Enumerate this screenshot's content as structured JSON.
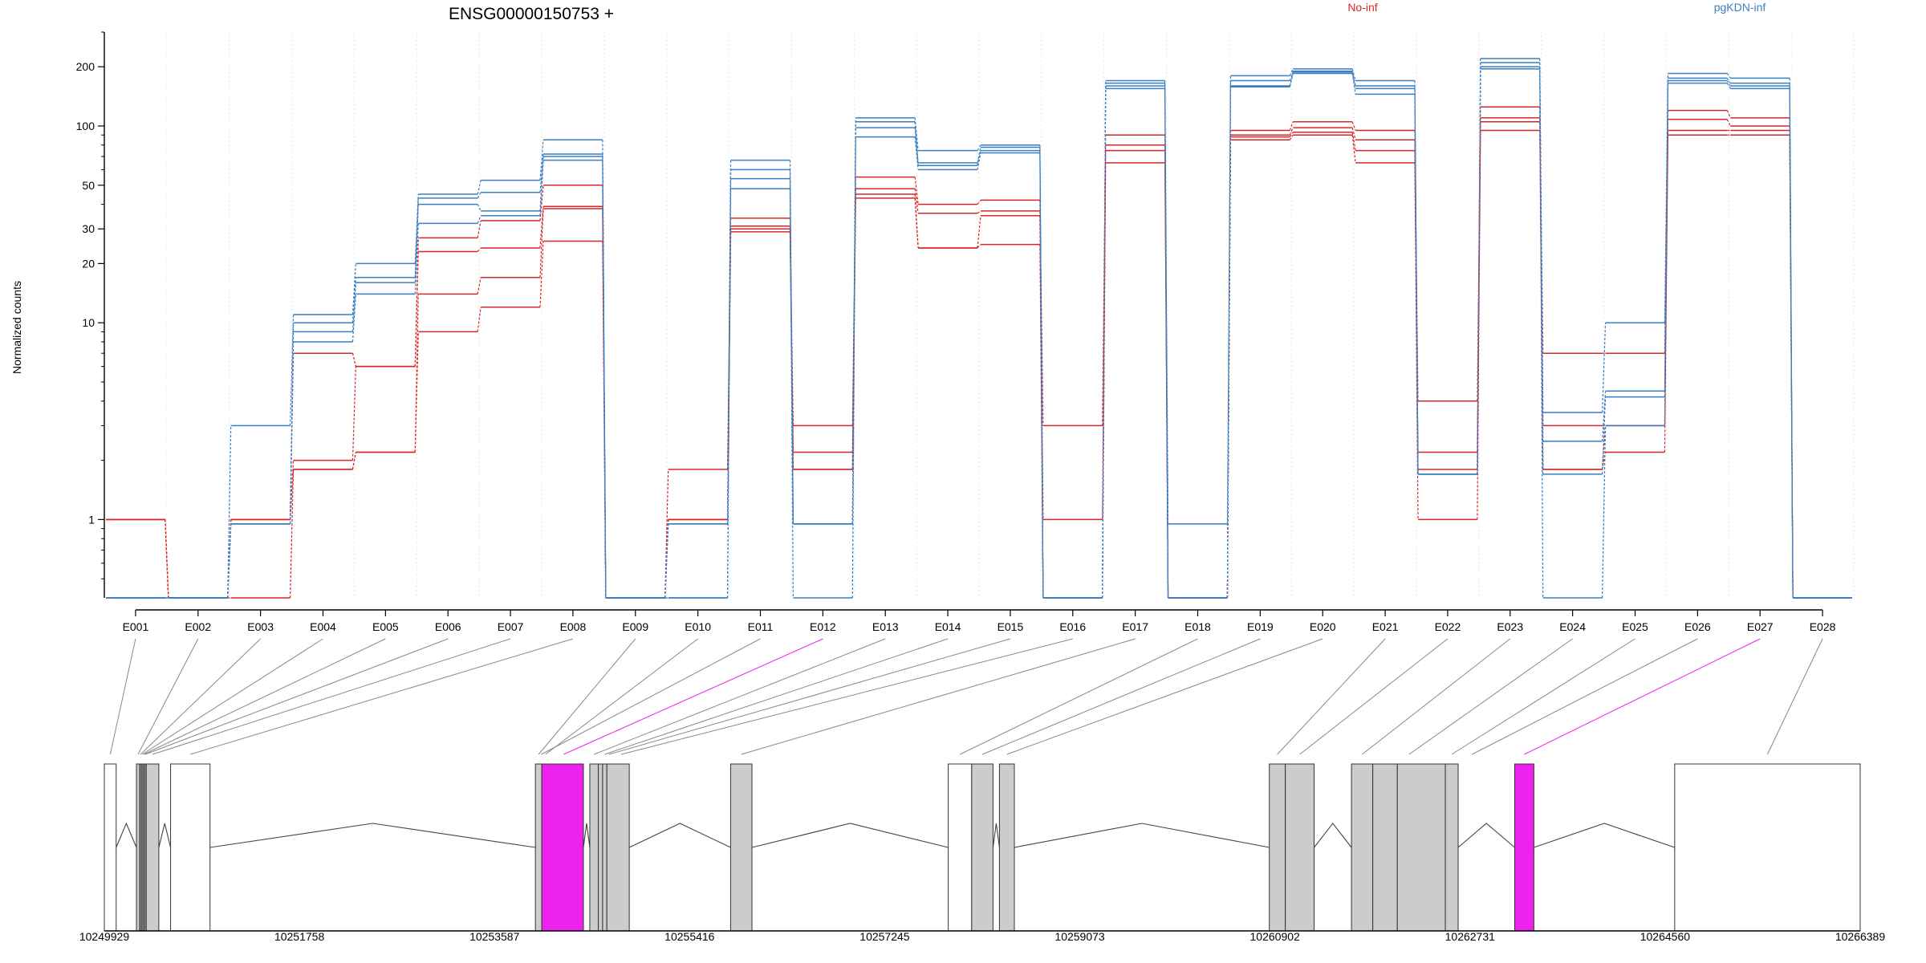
{
  "title": "ENSG00000150753 +",
  "colors": {
    "no_inf": "#d62728",
    "pgkdn_inf": "#3a7fc1",
    "highlight": "#ee22ee",
    "exon_fill": "#cccccc",
    "connector": "#888888"
  },
  "chart_data": {
    "type": "line",
    "title": "ENSG00000150753 +",
    "xlabel": "",
    "ylabel": "Normalized counts",
    "yscale": "log",
    "ylim": [
      0.4,
      300
    ],
    "yticks": [
      1,
      10,
      20,
      30,
      50,
      100,
      200
    ],
    "ytick_labels": [
      "1",
      "10",
      "20",
      "30",
      "50",
      "100",
      "200"
    ],
    "grid": "vertical dotted",
    "legend": "top",
    "categories": [
      "E001",
      "E002",
      "E003",
      "E004",
      "E005",
      "E006",
      "E007",
      "E008",
      "E009",
      "E010",
      "E011",
      "E012",
      "E013",
      "E014",
      "E015",
      "E016",
      "E017",
      "E018",
      "E019",
      "E020",
      "E021",
      "E022",
      "E023",
      "E024",
      "E025",
      "E026",
      "E027",
      "E028"
    ],
    "series": [
      {
        "name": "No-inf",
        "group": "no_inf",
        "values": [
          1,
          0.4,
          1,
          7,
          6,
          27,
          33,
          50,
          0.4,
          1.8,
          34,
          3,
          55,
          40,
          42,
          3,
          90,
          0.4,
          95,
          105,
          95,
          4,
          125,
          7,
          7,
          120,
          110,
          0.4
        ]
      },
      {
        "group": "no_inf",
        "values": [
          1,
          0.4,
          1,
          2,
          6,
          23,
          24,
          39,
          0.4,
          1,
          31,
          2.2,
          48,
          36,
          37,
          1,
          80,
          0.4,
          90,
          98,
          85,
          2.2,
          110,
          3,
          3,
          108,
          100,
          0.4
        ]
      },
      {
        "group": "no_inf",
        "values": [
          1,
          0.4,
          1,
          1.8,
          2.2,
          14,
          17,
          38,
          0.4,
          1,
          30,
          1.8,
          45,
          24,
          25,
          0.4,
          75,
          0.4,
          88,
          93,
          75,
          1.8,
          105,
          1.8,
          2.2,
          95,
          95,
          0.4
        ]
      },
      {
        "group": "no_inf",
        "values": [
          1,
          0.4,
          0.4,
          1.8,
          2.2,
          9,
          12,
          26,
          0.4,
          1,
          29,
          1.8,
          43,
          24,
          35,
          0.4,
          65,
          0.4,
          85,
          90,
          65,
          1,
          95,
          1.8,
          3,
          90,
          90,
          0.4
        ]
      },
      {
        "name": "pgKDN-inf",
        "group": "pgkdn_inf",
        "values": [
          0.4,
          0.4,
          3,
          11,
          20,
          45,
          53,
          85,
          0.4,
          0.95,
          67,
          0.95,
          110,
          75,
          80,
          0.4,
          170,
          0.95,
          180,
          195,
          170,
          1.7,
          220,
          3.5,
          10,
          185,
          175,
          0.4
        ]
      },
      {
        "group": "pgkdn_inf",
        "values": [
          0.4,
          0.4,
          0.95,
          10,
          17,
          43,
          46,
          72,
          0.4,
          0.95,
          60,
          0.95,
          105,
          65,
          78,
          0.4,
          165,
          0.4,
          170,
          190,
          160,
          1.7,
          210,
          2.5,
          4.5,
          175,
          165,
          0.4
        ]
      },
      {
        "group": "pgkdn_inf",
        "values": [
          0.4,
          0.4,
          0.95,
          9,
          16,
          40,
          37,
          70,
          0.4,
          0.4,
          54,
          0.95,
          98,
          63,
          75,
          0.4,
          160,
          0.4,
          160,
          188,
          155,
          1.7,
          200,
          1.7,
          4.2,
          170,
          160,
          0.4
        ]
      },
      {
        "group": "pgkdn_inf",
        "values": [
          0.4,
          0.4,
          0.95,
          8,
          14,
          32,
          35,
          67,
          0.4,
          0.4,
          48,
          0.4,
          88,
          60,
          73,
          0.4,
          155,
          0.4,
          158,
          185,
          145,
          1.7,
          195,
          0.4,
          3,
          165,
          155,
          0.4
        ]
      }
    ]
  },
  "gene_model": {
    "coord_ticks": [
      "10249929",
      "10251758",
      "10253587",
      "10255416",
      "10257245",
      "10259073",
      "10260902",
      "10262731",
      "10264560",
      "10266389"
    ],
    "coord_range": [
      10249929,
      10266389
    ],
    "exon_links": [
      {
        "exon": "E001",
        "start": 10249929,
        "end": 10250040,
        "highlight": false
      },
      {
        "exon": "E002",
        "start": 10250230,
        "end": 10250260,
        "highlight": false
      },
      {
        "exon": "E003",
        "start": 10250262,
        "end": 10250275,
        "highlight": false
      },
      {
        "exon": "E004",
        "start": 10250277,
        "end": 10250290,
        "highlight": false
      },
      {
        "exon": "E005",
        "start": 10250292,
        "end": 10250305,
        "highlight": false
      },
      {
        "exon": "E006",
        "start": 10250307,
        "end": 10250320,
        "highlight": false
      },
      {
        "exon": "E007",
        "start": 10250322,
        "end": 10250440,
        "highlight": false
      },
      {
        "exon": "E008",
        "start": 10250550,
        "end": 10250920,
        "highlight": false
      },
      {
        "exon": "E009",
        "start": 10253970,
        "end": 10254030,
        "highlight": false
      },
      {
        "exon": "E010",
        "start": 10254030,
        "end": 10254100,
        "highlight": false
      },
      {
        "exon": "E011",
        "start": 10254000,
        "end": 10254050,
        "highlight": false
      },
      {
        "exon": "E012",
        "start": 10254050,
        "end": 10254420,
        "highlight": true
      },
      {
        "exon": "E013",
        "start": 10254480,
        "end": 10254560,
        "highlight": false
      },
      {
        "exon": "E014",
        "start": 10254600,
        "end": 10254640,
        "highlight": false
      },
      {
        "exon": "E015",
        "start": 10254640,
        "end": 10254680,
        "highlight": false
      },
      {
        "exon": "E016",
        "start": 10254700,
        "end": 10254850,
        "highlight": false
      },
      {
        "exon": "E017",
        "start": 10255800,
        "end": 10256000,
        "highlight": false
      },
      {
        "exon": "E018",
        "start": 10257840,
        "end": 10258060,
        "highlight": false
      },
      {
        "exon": "E019",
        "start": 10258060,
        "end": 10258260,
        "highlight": false
      },
      {
        "exon": "E020",
        "start": 10258320,
        "end": 10258460,
        "highlight": false
      },
      {
        "exon": "E021",
        "start": 10260850,
        "end": 10261000,
        "highlight": false
      },
      {
        "exon": "E022",
        "start": 10261000,
        "end": 10261270,
        "highlight": false
      },
      {
        "exon": "E023",
        "start": 10261620,
        "end": 10261820,
        "highlight": false
      },
      {
        "exon": "E024",
        "start": 10261820,
        "end": 10262500,
        "highlight": false
      },
      {
        "exon": "E025",
        "start": 10262500,
        "end": 10262620,
        "highlight": false
      },
      {
        "exon": "E026",
        "start": 10262620,
        "end": 10262880,
        "highlight": false
      },
      {
        "exon": "E027",
        "start": 10263150,
        "end": 10263330,
        "highlight": true
      },
      {
        "exon": "E028",
        "start": 10264650,
        "end": 10266389,
        "highlight": false
      }
    ],
    "boxes": [
      {
        "start": 10249929,
        "end": 10250040,
        "fill": "white"
      },
      {
        "start": 10250230,
        "end": 10250260,
        "fill": "gray"
      },
      {
        "start": 10250262,
        "end": 10250275,
        "fill": "gray"
      },
      {
        "start": 10250277,
        "end": 10250290,
        "fill": "gray"
      },
      {
        "start": 10250292,
        "end": 10250305,
        "fill": "gray"
      },
      {
        "start": 10250307,
        "end": 10250320,
        "fill": "gray"
      },
      {
        "start": 10250322,
        "end": 10250440,
        "fill": "gray"
      },
      {
        "start": 10250550,
        "end": 10250920,
        "fill": "white"
      },
      {
        "start": 10253970,
        "end": 10254030,
        "fill": "gray"
      },
      {
        "start": 10254030,
        "end": 10254420,
        "fill": "highlight"
      },
      {
        "start": 10254480,
        "end": 10254560,
        "fill": "gray"
      },
      {
        "start": 10254560,
        "end": 10254600,
        "fill": "gray"
      },
      {
        "start": 10254600,
        "end": 10254640,
        "fill": "gray"
      },
      {
        "start": 10254640,
        "end": 10254850,
        "fill": "gray"
      },
      {
        "start": 10255800,
        "end": 10256000,
        "fill": "gray"
      },
      {
        "start": 10257840,
        "end": 10258060,
        "fill": "white"
      },
      {
        "start": 10258060,
        "end": 10258260,
        "fill": "gray"
      },
      {
        "start": 10258320,
        "end": 10258460,
        "fill": "gray"
      },
      {
        "start": 10260850,
        "end": 10261000,
        "fill": "gray"
      },
      {
        "start": 10261000,
        "end": 10261270,
        "fill": "gray"
      },
      {
        "start": 10261620,
        "end": 10261820,
        "fill": "gray"
      },
      {
        "start": 10261820,
        "end": 10262050,
        "fill": "gray"
      },
      {
        "start": 10262050,
        "end": 10262500,
        "fill": "gray"
      },
      {
        "start": 10262500,
        "end": 10262620,
        "fill": "gray"
      },
      {
        "start": 10263150,
        "end": 10263330,
        "fill": "highlight"
      },
      {
        "start": 10264650,
        "end": 10266389,
        "fill": "white"
      }
    ]
  }
}
